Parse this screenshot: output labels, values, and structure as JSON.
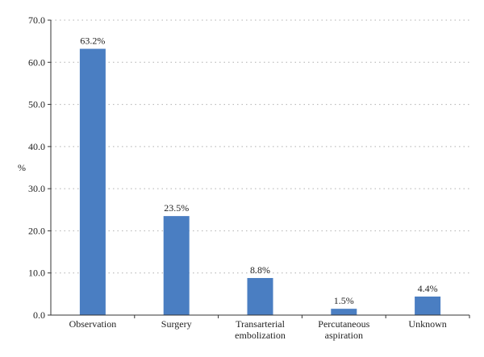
{
  "chart_data": {
    "type": "bar",
    "title": "",
    "xlabel": "",
    "ylabel": "%",
    "categories": [
      [
        "Observation"
      ],
      [
        "Surgery"
      ],
      [
        "Transarterial",
        "embolization"
      ],
      [
        "Percutaneous",
        "aspiration"
      ],
      [
        "Unknown"
      ]
    ],
    "values": [
      63.2,
      23.5,
      8.8,
      1.5,
      4.4
    ],
    "data_labels": [
      "63.2%",
      "23.5%",
      "8.8%",
      "1.5%",
      "4.4%"
    ],
    "ylim": [
      0,
      70
    ],
    "yticks": [
      0,
      10,
      20,
      30,
      40,
      50,
      60,
      70
    ],
    "ytick_labels": [
      "0.0",
      "10.0",
      "20.0",
      "30.0",
      "40.0",
      "50.0",
      "60.0",
      "70.0"
    ],
    "grid": "horizontal-dotted",
    "legend": "none",
    "bar_color": "#4a7ec2",
    "grid_color": "#b0b0b0",
    "axis_color": "#333333"
  }
}
